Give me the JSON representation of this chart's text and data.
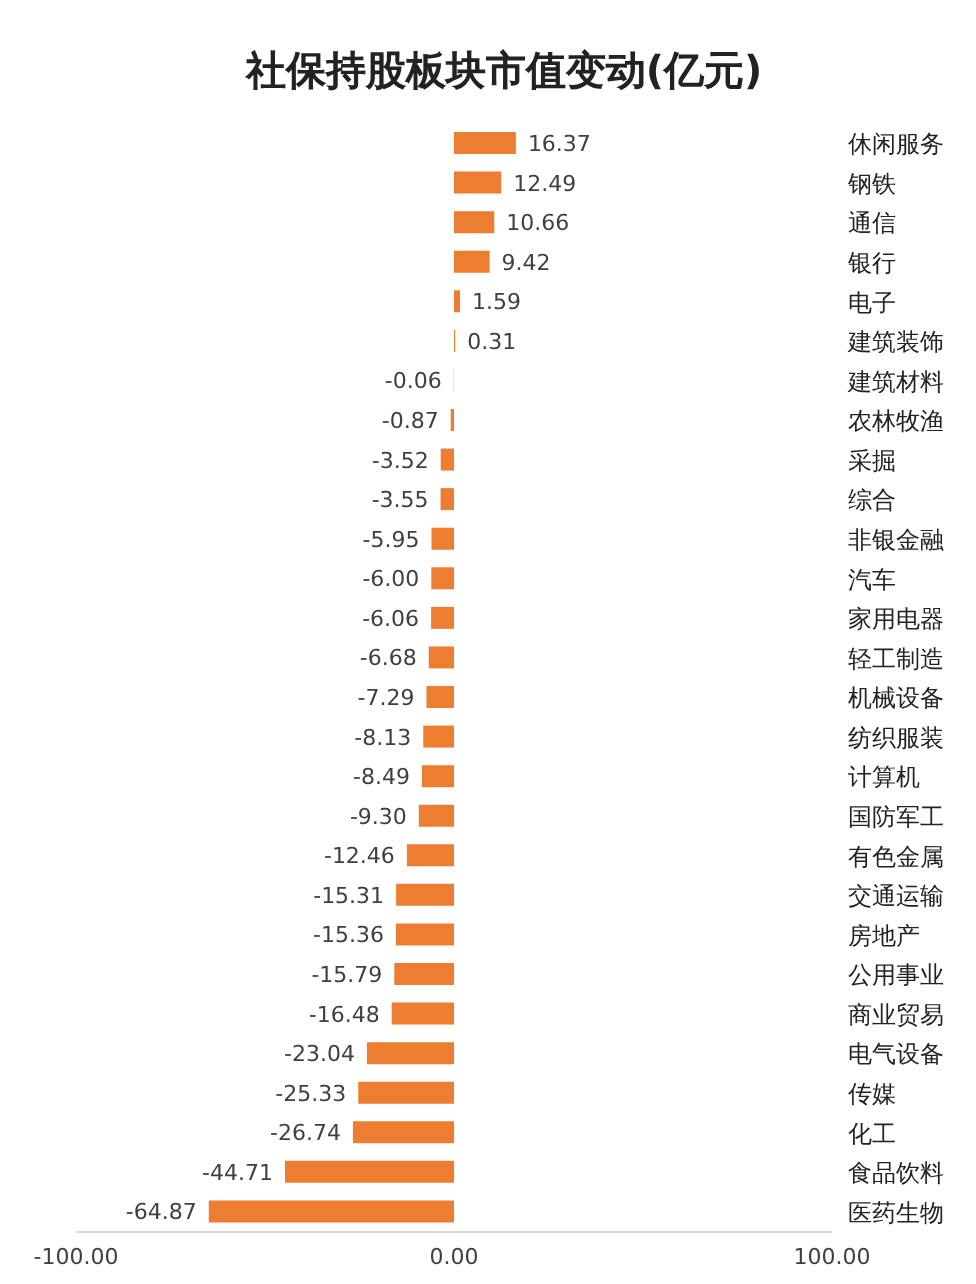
{
  "chart_data": {
    "type": "bar",
    "orientation": "horizontal",
    "title": "社保持股板块市值变动(亿元)",
    "categories": [
      "休闲服务",
      "钢铁",
      "通信",
      "银行",
      "电子",
      "建筑装饰",
      "建筑材料",
      "农林牧渔",
      "采掘",
      "综合",
      "非银金融",
      "汽车",
      "家用电器",
      "轻工制造",
      "机械设备",
      "纺织服装",
      "计算机",
      "国防军工",
      "有色金属",
      "交通运输",
      "房地产",
      "公用事业",
      "商业贸易",
      "电气设备",
      "传媒",
      "化工",
      "食品饮料",
      "医药生物"
    ],
    "values": [
      16.37,
      12.49,
      10.66,
      9.42,
      1.59,
      0.31,
      -0.06,
      -0.87,
      -3.52,
      -3.55,
      -5.95,
      -6.0,
      -6.06,
      -6.68,
      -7.29,
      -8.13,
      -8.49,
      -9.3,
      -12.46,
      -15.31,
      -15.36,
      -15.79,
      -16.48,
      -23.04,
      -25.33,
      -26.74,
      -44.71,
      -64.87
    ],
    "value_labels": [
      "16.37",
      "12.49",
      "10.66",
      "9.42",
      "1.59",
      "0.31",
      "-0.06",
      "-0.87",
      "-3.52",
      "-3.55",
      "-5.95",
      "-6.00",
      "-6.06",
      "-6.68",
      "-7.29",
      "-8.13",
      "-8.49",
      "-9.30",
      "-12.46",
      "-15.31",
      "-15.36",
      "-15.79",
      "-16.48",
      "-23.04",
      "-25.33",
      "-26.74",
      "-44.71",
      "-64.87"
    ],
    "color": "#ed7d31",
    "xlim": [
      -100,
      100
    ],
    "xticks": [
      {
        "value": -100,
        "label": "-100.00"
      },
      {
        "value": 0,
        "label": "0.00"
      },
      {
        "value": 100,
        "label": "100.00"
      }
    ],
    "grid": false,
    "legend": false
  }
}
